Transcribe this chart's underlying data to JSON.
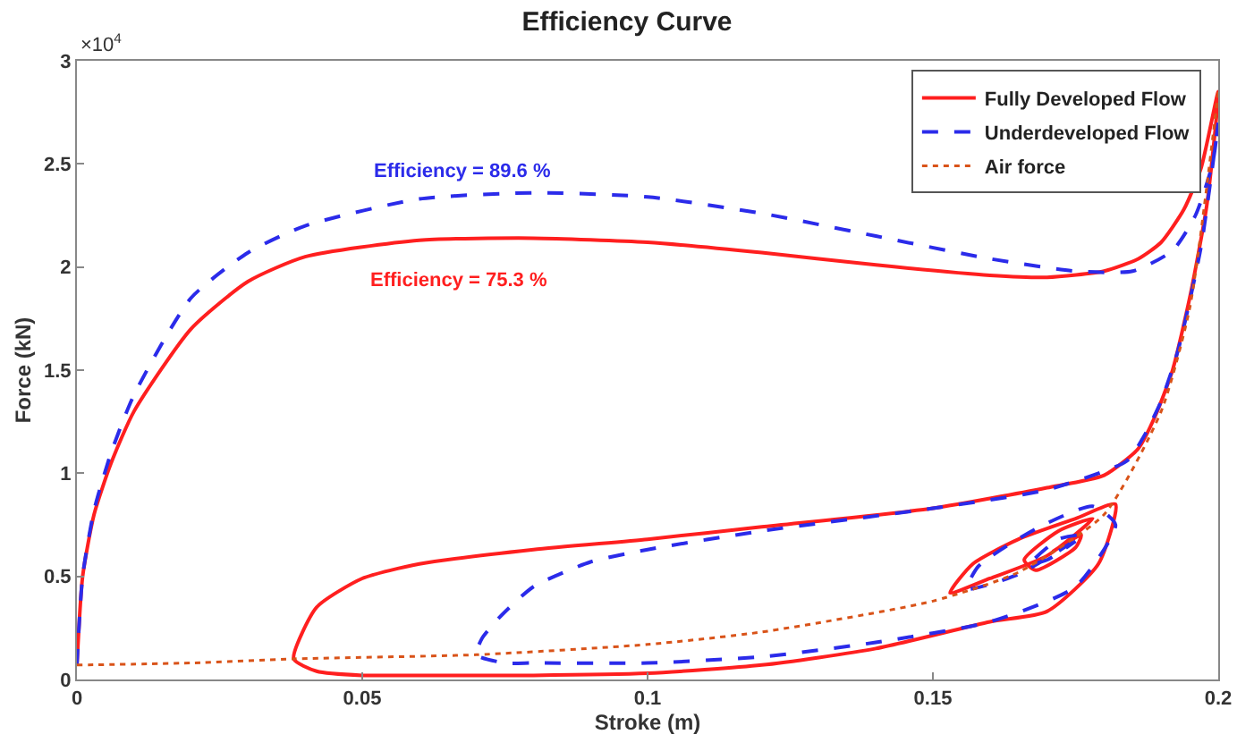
{
  "chart_data": {
    "type": "line",
    "title": "Efficiency Curve",
    "xlabel": "Stroke (m)",
    "ylabel": "Force (kN)",
    "xlim": [
      0,
      0.2
    ],
    "xticks": [
      0,
      0.05,
      0.1,
      0.15,
      0.2
    ],
    "ylim": [
      0,
      3
    ],
    "yticks": [
      0,
      0.5,
      1,
      1.5,
      2,
      2.5,
      3
    ],
    "grid": false,
    "legend": "top right",
    "marker": "none",
    "annotations": [
      "×10$^{4}$",
      "Efficiency = 89.6 %",
      "Efficiency = 75.3 %"
    ],
    "series": [
      {
        "name": "Fully Developed Flow",
        "color": "#ff1f1f",
        "line_style": "solid",
        "x": [
          0,
          0.001,
          0.003,
          0.006,
          0.01,
          0.02,
          0.03,
          0.04,
          0.06,
          0.08,
          0.1,
          0.12,
          0.14,
          0.16,
          0.17,
          0.18,
          0.186,
          0.19,
          0.194,
          0.197,
          0.2,
          0.198,
          0.195,
          0.192,
          0.189,
          0.186,
          0.18,
          0.17,
          0.15,
          0.12,
          0.1,
          0.08,
          0.06,
          0.05,
          0.042,
          0.038,
          0.042,
          0.05,
          0.06,
          0.08,
          0.1,
          0.12,
          0.14,
          0.16,
          0.17,
          0.179,
          0.182,
          0.175,
          0.165,
          0.157,
          0.153,
          0.16,
          0.17,
          0.178,
          0.172,
          0.166,
          0.168,
          0.175,
          0.176,
          0.171
        ],
        "values": [
          0.07,
          0.5,
          0.8,
          1.05,
          1.3,
          1.7,
          1.93,
          2.05,
          2.13,
          2.14,
          2.12,
          2.07,
          2.01,
          1.96,
          1.95,
          1.98,
          2.04,
          2.12,
          2.28,
          2.48,
          2.85,
          2.3,
          1.85,
          1.5,
          1.28,
          1.12,
          0.99,
          0.93,
          0.83,
          0.74,
          0.68,
          0.63,
          0.56,
          0.49,
          0.35,
          0.1,
          0.04,
          0.02,
          0.02,
          0.02,
          0.03,
          0.07,
          0.15,
          0.28,
          0.33,
          0.56,
          0.85,
          0.78,
          0.68,
          0.56,
          0.42,
          0.49,
          0.6,
          0.78,
          0.72,
          0.58,
          0.53,
          0.64,
          0.7,
          0.62
        ]
      },
      {
        "name": "Underdeveloped Flow",
        "color": "#2b2bea",
        "line_style": "dashed",
        "x": [
          0,
          0.001,
          0.003,
          0.006,
          0.01,
          0.02,
          0.03,
          0.04,
          0.06,
          0.08,
          0.1,
          0.12,
          0.14,
          0.16,
          0.175,
          0.185,
          0.192,
          0.196,
          0.199,
          0.2,
          0.197,
          0.193,
          0.19,
          0.187,
          0.184,
          0.17,
          0.15,
          0.12,
          0.1,
          0.09,
          0.08,
          0.074,
          0.071,
          0.07,
          0.075,
          0.08,
          0.1,
          0.12,
          0.14,
          0.16,
          0.175,
          0.182,
          0.178,
          0.168,
          0.158,
          0.156,
          0.165,
          0.176,
          0.172,
          0.167,
          0.17,
          0.175
        ],
        "values": [
          0.07,
          0.5,
          0.82,
          1.1,
          1.38,
          1.85,
          2.07,
          2.2,
          2.33,
          2.36,
          2.34,
          2.26,
          2.15,
          2.04,
          1.98,
          1.98,
          2.08,
          2.25,
          2.5,
          2.7,
          2.1,
          1.6,
          1.35,
          1.18,
          1.06,
          0.92,
          0.83,
          0.72,
          0.63,
          0.57,
          0.45,
          0.3,
          0.2,
          0.12,
          0.08,
          0.08,
          0.08,
          0.11,
          0.18,
          0.28,
          0.45,
          0.75,
          0.84,
          0.73,
          0.55,
          0.44,
          0.51,
          0.7,
          0.68,
          0.56,
          0.58,
          0.67
        ]
      },
      {
        "name": "Air force",
        "color": "#d95319",
        "line_style": "dotted",
        "x": [
          0,
          0.02,
          0.038,
          0.07,
          0.1,
          0.12,
          0.15,
          0.165,
          0.18,
          0.19,
          0.195,
          0.2
        ],
        "values": [
          0.07,
          0.08,
          0.1,
          0.12,
          0.17,
          0.23,
          0.38,
          0.52,
          0.8,
          1.3,
          1.8,
          2.85
        ]
      }
    ]
  }
}
